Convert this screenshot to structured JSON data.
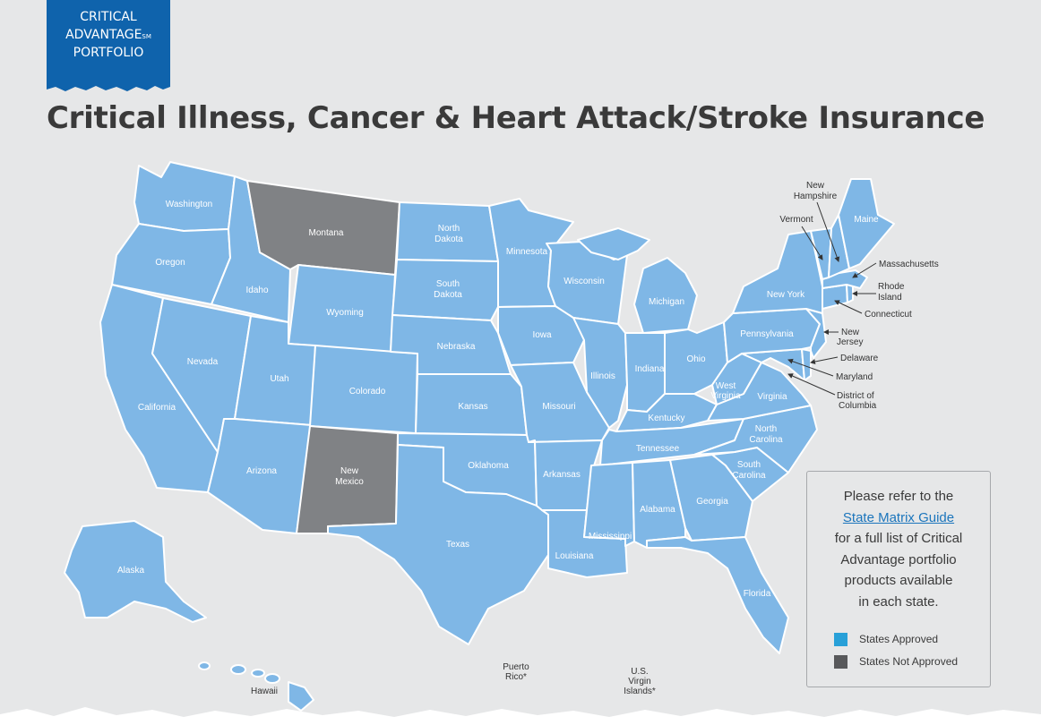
{
  "badge": {
    "line1": "CRITICAL",
    "line2": "ADVANTAGE",
    "line2_mark": "SM",
    "line3": "PORTFOLIO"
  },
  "title": "Critical Illness, Cancer & Heart Attack/Stroke Insurance",
  "info": {
    "line1": "Please refer to the",
    "link_text": "State Matrix Guide",
    "line3": "for a full list of Critical",
    "line4": "Advantage portfolio",
    "line5": "products available",
    "line6": "in each state."
  },
  "legend": {
    "approved": {
      "label": "States Approved",
      "color": "#28a0d8"
    },
    "not_approved": {
      "label": "States Not Approved",
      "color": "#58595b"
    }
  },
  "colors": {
    "approved_fill": "#7fb7e6",
    "not_approved_fill": "#808285",
    "badge": "#0f63ac",
    "background": "#e6e7e8"
  },
  "not_approved_states": [
    "Montana",
    "New Mexico"
  ],
  "states": {
    "washington": "Washington",
    "oregon": "Oregon",
    "california": "California",
    "idaho": "Idaho",
    "nevada": "Nevada",
    "montana": "Montana",
    "wyoming": "Wyoming",
    "utah": "Utah",
    "arizona": "Arizona",
    "colorado": "Colorado",
    "new_mexico_1": "New",
    "new_mexico_2": "Mexico",
    "north_dakota_1": "North",
    "north_dakota_2": "Dakota",
    "south_dakota_1": "South",
    "south_dakota_2": "Dakota",
    "nebraska": "Nebraska",
    "kansas": "Kansas",
    "oklahoma": "Oklahoma",
    "texas": "Texas",
    "minnesota": "Minnesota",
    "iowa": "Iowa",
    "missouri": "Missouri",
    "arkansas": "Arkansas",
    "louisiana": "Louisiana",
    "wisconsin": "Wisconsin",
    "illinois": "Illinois",
    "michigan": "Michigan",
    "indiana": "Indiana",
    "ohio": "Ohio",
    "kentucky": "Kentucky",
    "tennessee": "Tennessee",
    "mississippi": "Mississippi",
    "alabama": "Alabama",
    "georgia": "Georgia",
    "florida": "Florida",
    "south_carolina_1": "South",
    "south_carolina_2": "Carolina",
    "north_carolina_1": "North",
    "north_carolina_2": "Carolina",
    "virginia": "Virginia",
    "west_virginia_1": "West",
    "west_virginia_2": "Virginia",
    "pennsylvania": "Pennsylvania",
    "new_york": "New York",
    "maine": "Maine",
    "vermont": "Vermont",
    "new_hampshire_1": "New",
    "new_hampshire_2": "Hampshire",
    "massachusetts": "Massachusetts",
    "rhode_island_1": "Rhode",
    "rhode_island_2": "Island",
    "connecticut": "Connecticut",
    "new_jersey_1": "New",
    "new_jersey_2": "Jersey",
    "delaware": "Delaware",
    "maryland": "Maryland",
    "dc_1": "District of",
    "dc_2": "Columbia",
    "alaska": "Alaska",
    "hawaii": "Hawaii",
    "puerto_rico_1": "Puerto",
    "puerto_rico_2": "Rico*",
    "usvi_1": "U.S.",
    "usvi_2": "Virgin",
    "usvi_3": "Islands*"
  }
}
